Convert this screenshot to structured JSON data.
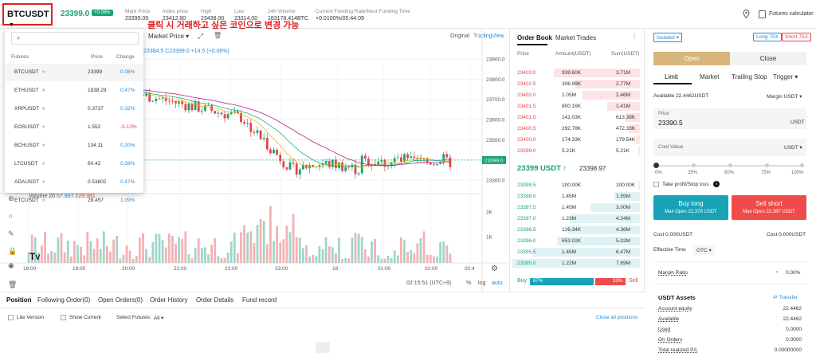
{
  "header": {
    "symbol": "BTCUSDT",
    "last_price": "23399.0",
    "change_badge": "+0.08%",
    "mark_price_label": "Mark Price",
    "mark_price": "23399.09",
    "index_price_label": "Index price",
    "index_price": "23412.80",
    "high_label": "High",
    "high": "23438.00",
    "low_label": "Low",
    "low": "23314.00",
    "volume_label": "24h Volume",
    "volume": "183178.414BTC",
    "funding_label": "Current Funding Rate/Next Funding Time",
    "funding": "+0.0100%/05:44:09",
    "calculator": "Futures calculator"
  },
  "annotation": "클릭 시 거래하고 싶은 코인으로 변경 가능",
  "chart": {
    "price_type": "Market Price",
    "views": [
      "Original",
      "TradingView"
    ],
    "ohlc": "23384.5 C23399.0 +14.5 (+0.06%)",
    "volume_label": "Volume 20",
    "volume_v1": "57.907",
    "volume_v2": "229.381",
    "y_ticks": [
      "23900.0",
      "23800.0",
      "23700.0",
      "23600.0",
      "23500.0",
      "23400.0",
      "23300.0"
    ],
    "current_price": "23399.0",
    "vol_ticks": [
      "2K",
      "1K"
    ],
    "x_ticks": [
      "18:00",
      "19:00",
      "20:00",
      "21:00",
      "22:00",
      "23:00",
      "18",
      "01:00",
      "02:00",
      "02:4"
    ],
    "clock": "02:15:51 (UTC+9)",
    "scale_opts": [
      "%",
      "log",
      "auto"
    ]
  },
  "dropdown": {
    "headers": [
      "Futures",
      "Price",
      "Change"
    ],
    "rows": [
      {
        "sym": "BTCUSDT",
        "price": "23399",
        "change": "0.08%",
        "dir": "up"
      },
      {
        "sym": "ETHUSDT",
        "price": "1838.29",
        "change": "0.47%",
        "dir": "up"
      },
      {
        "sym": "XRPUSDT",
        "price": "0.3737",
        "change": "0.32%",
        "dir": "up"
      },
      {
        "sym": "EOSUSDT",
        "price": "1.552",
        "change": "-0.13%",
        "dir": "down"
      },
      {
        "sym": "BCHUSDT",
        "price": "134.11",
        "change": "0.20%",
        "dir": "up"
      },
      {
        "sym": "LTCUSDT",
        "price": "60.42",
        "change": "0.28%",
        "dir": "up"
      },
      {
        "sym": "ADAUSDT",
        "price": "0.53802",
        "change": "0.47%",
        "dir": "up"
      },
      {
        "sym": "ETCUSDT",
        "price": "28.457",
        "change": "1.09%",
        "dir": "up"
      }
    ]
  },
  "orderbook": {
    "tabs": [
      "Order Book",
      "Market Trades"
    ],
    "headers": [
      "Price",
      "Amount(USDT)",
      "Sum(USDT)"
    ],
    "asks": [
      {
        "p": "23403.0",
        "a": "939.60K",
        "s": "3.71M"
      },
      {
        "p": "23402.5",
        "a": "306.99K",
        "s": "2.77M"
      },
      {
        "p": "23402.0",
        "a": "1.05M",
        "s": "2.46M"
      },
      {
        "p": "23401.5",
        "a": "800.16K",
        "s": "1.41M"
      },
      {
        "p": "23401.0",
        "a": "141.03K",
        "s": "613.38K"
      },
      {
        "p": "23400.5",
        "a": "292.78K",
        "s": "472.33K"
      },
      {
        "p": "23400.0",
        "a": "174.33K",
        "s": "179.54K"
      },
      {
        "p": "23399.0",
        "a": "5.21K",
        "s": "5.21K"
      }
    ],
    "mid_price": "23399 USDT ↑",
    "mid_mark": "23398.97",
    "bids": [
      {
        "p": "23398.5",
        "a": "100.00K",
        "s": "100.00K"
      },
      {
        "p": "23398.0",
        "a": "1.45M",
        "s": "1.55M"
      },
      {
        "p": "23397.5",
        "a": "1.45M",
        "s": "3.00M"
      },
      {
        "p": "23397.0",
        "a": "1.23M",
        "s": "4.24M"
      },
      {
        "p": "23396.5",
        "a": "126.34K",
        "s": "4.36M"
      },
      {
        "p": "23396.0",
        "a": "653.02K",
        "s": "5.02M"
      },
      {
        "p": "23395.5",
        "a": "1.45M",
        "s": "6.47M"
      },
      {
        "p": "23395.0",
        "a": "1.22M",
        "s": "7.69M"
      }
    ],
    "buy_label": "Buy",
    "buy_pct": "67%",
    "sell_pct": "33%",
    "sell_label": "Sell"
  },
  "trade": {
    "margin_mode": "Isolated",
    "long_lev": "Long 75X",
    "short_lev": "Short 75X",
    "open": "Open",
    "close": "Close",
    "order_types": [
      "Limit",
      "Market",
      "Trailing Stop",
      "Trigger"
    ],
    "available": "Available 22.4462USDT",
    "margin_label": "Margin",
    "margin_unit": "USDT",
    "price_label": "Price",
    "price_value": "23390.5",
    "price_unit": "USDT",
    "cost_label": "Cost Value",
    "cost_unit": "USDT",
    "slider": [
      "0%",
      "25%",
      "50%",
      "75%",
      "100%"
    ],
    "tpsl": "Take profit/Stop loss",
    "buy_long": "Buy long",
    "buy_max": "Max Open 22,379 USDT",
    "sell_short": "Sell short",
    "sell_max": "Max Open 22,387 USDT",
    "cost_left": "Cost 0.000USDT",
    "cost_right": "Cost 0.000USDT",
    "eff_time_label": "Effective Time",
    "eff_time": "GTC",
    "margin_ratio_label": "Margin Ratio",
    "margin_ratio": "0.00%",
    "assets_title": "USDT Assets",
    "transfer": "Transfer",
    "assets": [
      {
        "k": "Account equity",
        "v": "22.4462"
      },
      {
        "k": "Available",
        "v": "22.4462"
      },
      {
        "k": "Used",
        "v": "0.0000"
      },
      {
        "k": "On Orders",
        "v": "0.0000"
      },
      {
        "k": "Total realized P/L",
        "v": "0.00000000"
      }
    ]
  },
  "bottom": {
    "tabs": [
      "Position",
      "Following Order(0)",
      "Open Orders(0)",
      "Order History",
      "Order Details",
      "Fund record"
    ],
    "lite": "Lite Version",
    "show_current": "Show Current",
    "select_label": "Select Futures:",
    "select_value": "All",
    "close_all": "Close all positions"
  },
  "colors": {
    "green": "#1aa36f",
    "red": "#e0464a",
    "blue": "#2a8bd6",
    "gold": "#d8b57a",
    "teal": "#17a2b8",
    "sell": "#ef4b4b"
  }
}
